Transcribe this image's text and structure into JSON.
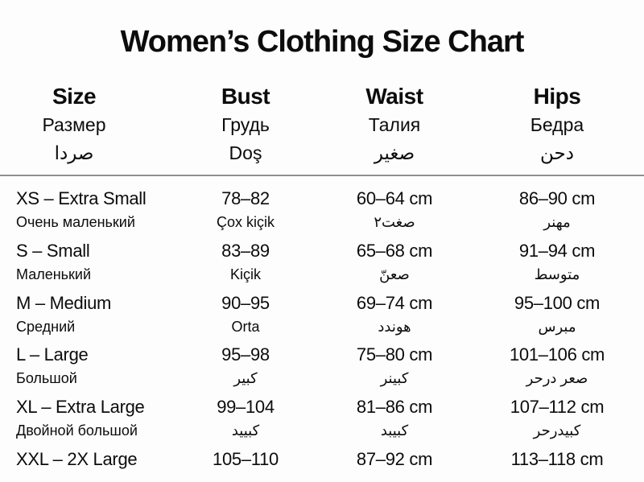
{
  "title": "Women’s Clothing Size Chart",
  "table": {
    "columns": [
      {
        "en": "Size",
        "ru": "Размер",
        "ar": "صردا"
      },
      {
        "en": "Bust",
        "ru": "Грудь",
        "ar": "Doş"
      },
      {
        "en": "Waist",
        "ru": "Талия",
        "ar": "صغير"
      },
      {
        "en": "Hips",
        "ru": "Бедра",
        "ar": "دحن"
      }
    ],
    "rows": [
      {
        "size": "XS – Extra Small",
        "size_sub": "Очень маленький",
        "bust": "78–82",
        "bust_sub": "Çox kiçik",
        "waist": "60–64 cm",
        "waist_sub": "صغت٢",
        "hips": "86–90 cm",
        "hips_sub": "مهنر"
      },
      {
        "size": "S – Small",
        "size_sub": "Маленький",
        "bust": "83–89",
        "bust_sub": "Kiçik",
        "waist": "65–68 cm",
        "waist_sub": "صعنّ",
        "hips": "91–94 cm",
        "hips_sub": "متوسط"
      },
      {
        "size": "M – Medium",
        "size_sub": "Средний",
        "bust": "90–95",
        "bust_sub": "Orta",
        "waist": "69–74 cm",
        "waist_sub": "هوندد",
        "hips": "95–100 cm",
        "hips_sub": "مبرس"
      },
      {
        "size": "L – Large",
        "size_sub": "Большой",
        "bust": "95–98",
        "bust_sub": "كبير",
        "waist": "75–80 cm",
        "waist_sub": "كبينر",
        "hips": "101–106 cm",
        "hips_sub": "صعر درحر"
      },
      {
        "size": "XL – Extra Large",
        "size_sub": "Двойной большой",
        "bust": "99–104",
        "bust_sub": "كبييد",
        "waist": "81–86 cm",
        "waist_sub": "كبيبد",
        "hips": "107–112 cm",
        "hips_sub": "كبيدرحر"
      },
      {
        "size": "XXL – 2X Large",
        "bust": "105–110",
        "waist": "87–92 cm",
        "hips": "113–118 cm"
      }
    ]
  }
}
